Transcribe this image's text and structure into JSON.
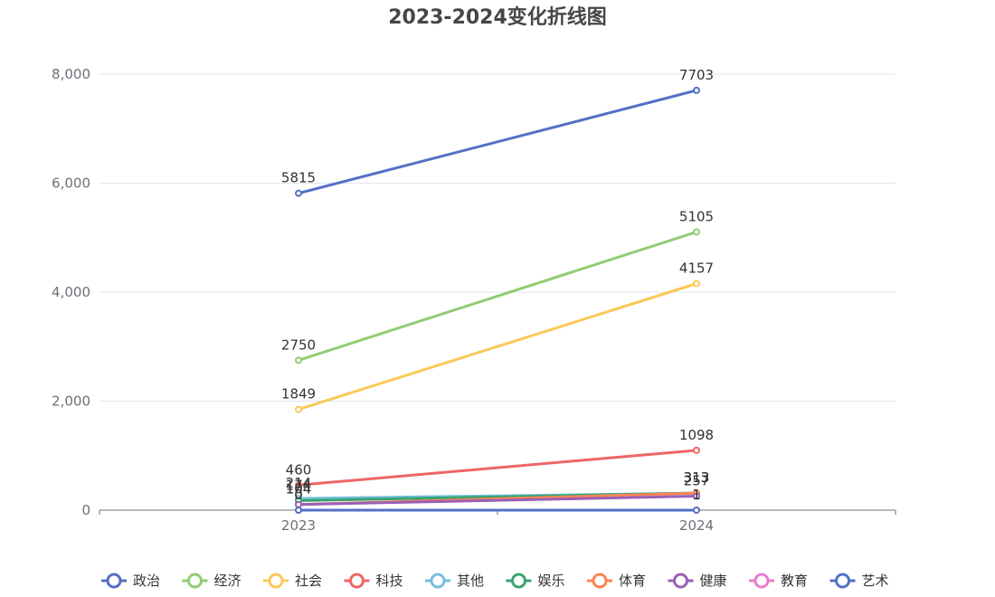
{
  "chart_data": {
    "type": "line",
    "title": "2023-2024变化折线图",
    "categories": [
      "2023",
      "2024"
    ],
    "ylim": [
      0,
      8000
    ],
    "yticks": [
      "0",
      "2,000",
      "4,000",
      "6,000",
      "8,000"
    ],
    "ytick_values": [
      0,
      2000,
      4000,
      6000,
      8000
    ],
    "grid": true,
    "legend_position": "bottom",
    "series": [
      {
        "name": "政治",
        "values": [
          5815,
          7703
        ],
        "color": "#5470c6"
      },
      {
        "name": "经济",
        "values": [
          2750,
          5105
        ],
        "color": "#91cc75"
      },
      {
        "name": "社会",
        "values": [
          1849,
          4157
        ],
        "color": "#fac858"
      },
      {
        "name": "科技",
        "values": [
          460,
          1098
        ],
        "color": "#ee6666"
      },
      {
        "name": "其他",
        "values": [
          214,
          313
        ],
        "color": "#73c0de"
      },
      {
        "name": "娱乐",
        "values": [
          174,
          313
        ],
        "color": "#3ba272"
      },
      {
        "name": "体育",
        "values": [
          104,
          313
        ],
        "color": "#fc8452"
      },
      {
        "name": "健康",
        "values": [
          104,
          257
        ],
        "color": "#9a60b4"
      },
      {
        "name": "教育",
        "values": [
          0,
          1
        ],
        "color": "#ea7ccc"
      },
      {
        "name": "艺术",
        "values": [
          0,
          1
        ],
        "color": "#5470c6"
      }
    ]
  }
}
